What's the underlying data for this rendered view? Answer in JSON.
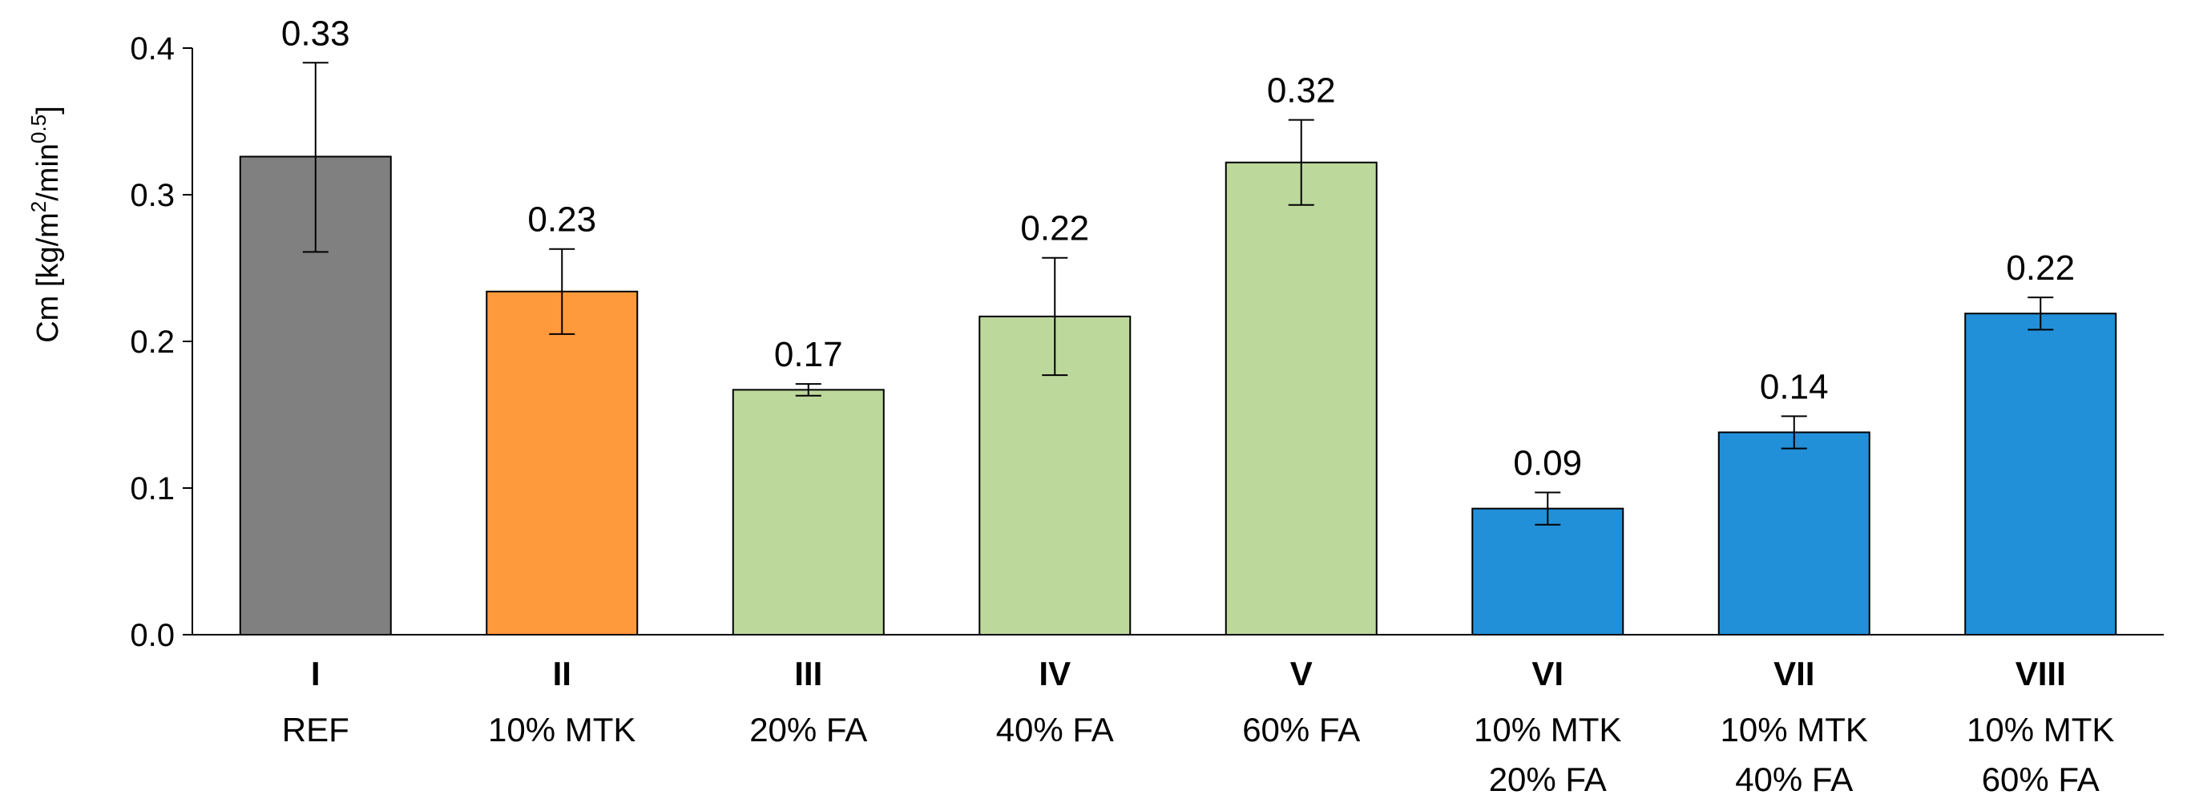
{
  "chart_data": {
    "type": "bar",
    "title": "",
    "xlabel": "",
    "ylabel": {
      "base": "Cm [kg/m",
      "sq": "2",
      "mid": "/min",
      "exp": "0.5",
      "end": "]"
    },
    "ylim": [
      0,
      0.4
    ],
    "yticks": [
      "0.0",
      "0.1",
      "0.2",
      "0.3",
      "0.4"
    ],
    "grid": false,
    "categories": [
      {
        "roman": "I",
        "lines": [
          "REF"
        ]
      },
      {
        "roman": "II",
        "lines": [
          "10% MTK"
        ]
      },
      {
        "roman": "III",
        "lines": [
          "20% FA"
        ]
      },
      {
        "roman": "IV",
        "lines": [
          "40% FA"
        ]
      },
      {
        "roman": "V",
        "lines": [
          "60% FA"
        ]
      },
      {
        "roman": "VI",
        "lines": [
          "10% MTK",
          "20% FA"
        ]
      },
      {
        "roman": "VII",
        "lines": [
          "10% MTK",
          "40% FA"
        ]
      },
      {
        "roman": "VIII",
        "lines": [
          "10% MTK",
          "60% FA"
        ]
      }
    ],
    "values": [
      0.326,
      0.234,
      0.167,
      0.217,
      0.322,
      0.086,
      0.138,
      0.219
    ],
    "error_plus": [
      0.064,
      0.029,
      0.004,
      0.04,
      0.029,
      0.011,
      0.011,
      0.011
    ],
    "error_minus": [
      0.065,
      0.029,
      0.004,
      0.04,
      0.029,
      0.011,
      0.011,
      0.011
    ],
    "data_labels": [
      "0.33",
      "0.23",
      "0.17",
      "0.22",
      "0.32",
      "0.09",
      "0.14",
      "0.22"
    ],
    "colors": [
      "#808080",
      "#FF9A3C",
      "#BDD89B",
      "#BDD89B",
      "#BDD89B",
      "#228FD9",
      "#228FD9",
      "#228FD9"
    ]
  }
}
